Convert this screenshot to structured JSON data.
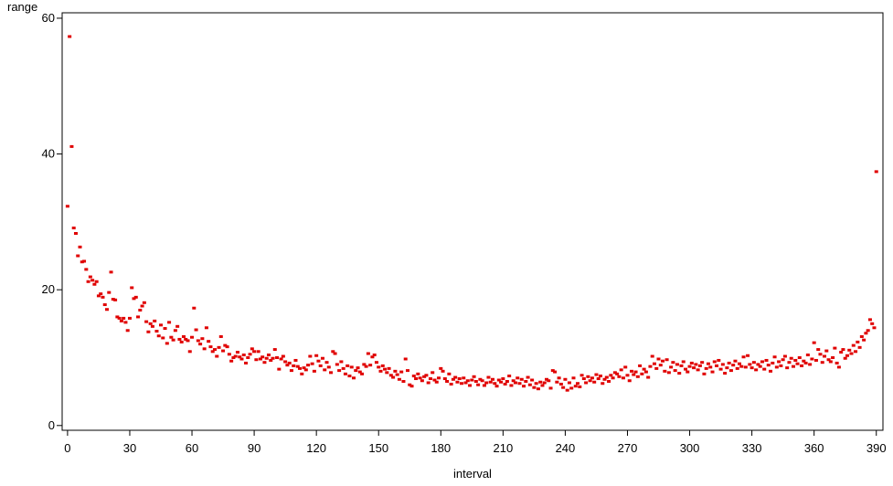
{
  "chart_data": {
    "type": "scatter",
    "x_label": "interval",
    "y_label": "range",
    "color": "#e00000",
    "xlim": [
      -2.6,
      393.2
    ],
    "ylim": [
      -0.7,
      60.8
    ],
    "xticks": [
      0,
      30,
      60,
      90,
      120,
      150,
      180,
      210,
      240,
      270,
      300,
      330,
      360,
      390
    ],
    "yticks": [
      0,
      20,
      40,
      60
    ],
    "x": [
      0,
      1,
      2,
      3,
      4,
      5,
      6,
      7,
      8,
      9,
      10,
      11,
      12,
      13,
      14,
      15,
      16,
      17,
      18,
      19,
      20,
      21,
      22,
      23,
      24,
      25,
      26,
      27,
      28,
      29,
      30,
      31,
      32,
      33,
      34,
      35,
      36,
      37,
      38,
      39,
      40,
      41,
      42,
      43,
      44,
      45,
      46,
      47,
      48,
      49,
      50,
      51,
      52,
      53,
      54,
      55,
      56,
      57,
      58,
      59,
      60,
      61,
      62,
      63,
      64,
      65,
      66,
      67,
      68,
      69,
      70,
      71,
      72,
      73,
      74,
      75,
      76,
      77,
      78,
      79,
      80,
      81,
      82,
      83,
      84,
      85,
      86,
      87,
      88,
      89,
      90,
      91,
      92,
      93,
      94,
      95,
      96,
      97,
      98,
      99,
      100,
      101,
      102,
      103,
      104,
      105,
      106,
      107,
      108,
      109,
      110,
      111,
      112,
      113,
      114,
      115,
      116,
      117,
      118,
      119,
      120,
      121,
      122,
      123,
      124,
      125,
      126,
      127,
      128,
      129,
      130,
      131,
      132,
      133,
      134,
      135,
      136,
      137,
      138,
      139,
      140,
      141,
      142,
      143,
      144,
      145,
      146,
      147,
      148,
      149,
      150,
      151,
      152,
      153,
      154,
      155,
      156,
      157,
      158,
      159,
      160,
      161,
      162,
      163,
      164,
      165,
      166,
      167,
      168,
      169,
      170,
      171,
      172,
      173,
      174,
      175,
      176,
      177,
      178,
      179,
      180,
      181,
      182,
      183,
      184,
      185,
      186,
      187,
      188,
      189,
      190,
      191,
      192,
      193,
      194,
      195,
      196,
      197,
      198,
      199,
      200,
      201,
      202,
      203,
      204,
      205,
      206,
      207,
      208,
      209,
      210,
      211,
      212,
      213,
      214,
      215,
      216,
      217,
      218,
      219,
      220,
      221,
      222,
      223,
      224,
      225,
      226,
      227,
      228,
      229,
      230,
      231,
      232,
      233,
      234,
      235,
      236,
      237,
      238,
      239,
      240,
      241,
      242,
      243,
      244,
      245,
      246,
      247,
      248,
      249,
      250,
      251,
      252,
      253,
      254,
      255,
      256,
      257,
      258,
      259,
      260,
      261,
      262,
      263,
      264,
      265,
      266,
      267,
      268,
      269,
      270,
      271,
      272,
      273,
      274,
      275,
      276,
      277,
      278,
      279,
      280,
      281,
      282,
      283,
      284,
      285,
      286,
      287,
      288,
      289,
      290,
      291,
      292,
      293,
      294,
      295,
      296,
      297,
      298,
      299,
      300,
      301,
      302,
      303,
      304,
      305,
      306,
      307,
      308,
      309,
      310,
      311,
      312,
      313,
      314,
      315,
      316,
      317,
      318,
      319,
      320,
      321,
      322,
      323,
      324,
      325,
      326,
      327,
      328,
      329,
      330,
      331,
      332,
      333,
      334,
      335,
      336,
      337,
      338,
      339,
      340,
      341,
      342,
      343,
      344,
      345,
      346,
      347,
      348,
      349,
      350,
      351,
      352,
      353,
      354,
      355,
      356,
      357,
      358,
      359,
      360,
      361,
      362,
      363,
      364,
      365,
      366,
      367,
      368,
      369,
      370,
      371,
      372,
      373,
      374,
      375,
      376,
      377,
      378,
      379,
      380,
      381,
      382,
      383,
      384,
      385,
      386,
      387,
      388,
      389,
      390
    ],
    "values": [
      32.3,
      57.3,
      41.1,
      29.1,
      28.3,
      25.0,
      26.3,
      24.1,
      24.2,
      23.0,
      21.2,
      21.9,
      21.4,
      20.8,
      21.2,
      19.1,
      19.4,
      18.9,
      17.8,
      17.1,
      19.6,
      22.6,
      18.6,
      18.5,
      16.0,
      15.8,
      15.4,
      15.8,
      15.2,
      14.0,
      15.8,
      20.3,
      18.7,
      18.9,
      16.0,
      17.0,
      17.6,
      18.1,
      15.3,
      13.8,
      15.0,
      14.6,
      15.4,
      13.9,
      13.2,
      14.8,
      12.9,
      14.3,
      12.1,
      15.2,
      13.0,
      12.6,
      14.0,
      14.6,
      12.7,
      12.3,
      13.1,
      12.7,
      12.5,
      10.9,
      13.0,
      17.3,
      14.1,
      12.5,
      12.0,
      12.8,
      11.3,
      14.4,
      12.4,
      11.6,
      10.9,
      11.2,
      10.2,
      11.5,
      13.1,
      11.0,
      11.8,
      11.6,
      10.5,
      9.5,
      10.0,
      10.2,
      10.8,
      10.1,
      9.8,
      10.4,
      9.2,
      10.0,
      10.5,
      11.3,
      10.9,
      9.7,
      10.9,
      9.8,
      10.1,
      9.3,
      9.9,
      10.4,
      9.6,
      9.9,
      11.2,
      10.0,
      8.3,
      9.8,
      10.2,
      9.4,
      8.9,
      9.2,
      8.1,
      8.8,
      9.6,
      8.7,
      8.4,
      7.6,
      8.5,
      8.2,
      8.9,
      10.2,
      9.1,
      8.0,
      10.3,
      9.5,
      8.8,
      9.9,
      8.2,
      9.3,
      8.6,
      7.8,
      10.9,
      10.6,
      9.0,
      8.1,
      9.4,
      8.4,
      7.6,
      8.8,
      7.3,
      8.6,
      7.0,
      8.1,
      8.5,
      7.9,
      7.6,
      9.0,
      8.7,
      10.6,
      8.9,
      10.1,
      10.4,
      9.3,
      8.6,
      8.0,
      8.8,
      8.3,
      7.8,
      8.4,
      7.4,
      7.1,
      8.0,
      7.5,
      6.8,
      7.9,
      6.5,
      9.8,
      8.1,
      6.0,
      5.8,
      7.3,
      6.9,
      7.6,
      7.0,
      6.6,
      7.2,
      7.4,
      6.3,
      6.9,
      7.8,
      6.7,
      6.4,
      7.0,
      8.4,
      8.0,
      6.9,
      6.5,
      7.6,
      6.1,
      6.8,
      7.1,
      6.4,
      6.9,
      6.2,
      7.0,
      6.3,
      6.6,
      5.9,
      6.7,
      7.2,
      6.5,
      6.0,
      6.8,
      6.6,
      5.9,
      6.3,
      7.1,
      6.4,
      6.8,
      6.2,
      5.8,
      6.7,
      6.4,
      6.9,
      6.1,
      6.5,
      7.3,
      5.9,
      6.6,
      6.3,
      7.0,
      6.2,
      6.8,
      5.8,
      6.5,
      7.1,
      6.0,
      6.7,
      5.6,
      6.2,
      5.4,
      6.4,
      5.9,
      6.3,
      6.8,
      6.6,
      5.5,
      8.1,
      7.9,
      6.4,
      7.0,
      6.1,
      5.6,
      6.8,
      5.2,
      6.3,
      5.5,
      7.0,
      5.8,
      6.2,
      5.7,
      7.4,
      6.9,
      6.3,
      7.2,
      6.6,
      7.0,
      6.4,
      7.5,
      6.9,
      7.3,
      6.2,
      6.8,
      7.1,
      6.5,
      7.4,
      7.0,
      7.8,
      7.6,
      7.2,
      8.2,
      7.0,
      8.6,
      7.4,
      6.6,
      8.0,
      7.5,
      7.9,
      7.2,
      8.8,
      7.6,
      8.3,
      7.9,
      7.1,
      8.7,
      10.2,
      9.1,
      8.4,
      9.8,
      8.9,
      9.5,
      8.0,
      9.7,
      7.8,
      8.6,
      9.3,
      8.1,
      9.0,
      7.7,
      8.8,
      9.4,
      8.3,
      7.9,
      8.7,
      9.2,
      8.5,
      9.0,
      8.2,
      8.8,
      9.3,
      7.6,
      8.4,
      9.1,
      8.6,
      7.9,
      9.4,
      8.8,
      9.6,
      8.3,
      9.0,
      7.7,
      8.5,
      9.2,
      8.1,
      8.9,
      9.5,
      8.4,
      9.1,
      8.7,
      10.1,
      8.6,
      10.3,
      9.0,
      8.5,
      9.3,
      8.2,
      9.0,
      8.7,
      9.4,
      8.3,
      9.6,
      8.9,
      8.0,
      9.2,
      10.1,
      8.6,
      9.4,
      8.8,
      9.7,
      10.2,
      8.5,
      9.3,
      9.9,
      8.7,
      9.6,
      9.1,
      10.0,
      8.8,
      9.5,
      9.2,
      10.4,
      9.0,
      9.8,
      12.2,
      9.6,
      11.2,
      10.5,
      9.3,
      10.2,
      11.0,
      9.7,
      9.4,
      10.0,
      11.4,
      9.2,
      8.6,
      10.8,
      11.2,
      9.9,
      10.3,
      11.1,
      10.6,
      11.8,
      10.9,
      12.3,
      11.5,
      13.1,
      12.6,
      13.6,
      14.0,
      15.6,
      15.0,
      14.4,
      37.4
    ]
  }
}
